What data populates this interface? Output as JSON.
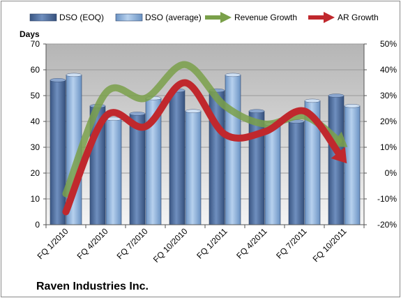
{
  "chart_data": {
    "type": "bar",
    "title": "Raven Industries Inc.",
    "ylabel_left": "Days",
    "categories": [
      "FQ 1/2010",
      "FQ 4/2010",
      "FQ 7/2010",
      "FQ 10/2010",
      "FQ 1/2011",
      "FQ 4/2011",
      "FQ 7/2011",
      "FQ 10/2011"
    ],
    "ylim_left": [
      0,
      70
    ],
    "yticks_left": [
      0,
      10,
      20,
      30,
      40,
      50,
      60,
      70
    ],
    "ylim_right": [
      -20,
      50
    ],
    "yticks_right": [
      -20,
      -10,
      0,
      10,
      20,
      30,
      40,
      50
    ],
    "ytick_labels_right": [
      "-20%",
      "-10%",
      "0%",
      "10%",
      "20%",
      "30%",
      "40%",
      "50%"
    ],
    "grid": true,
    "legend_position": "top",
    "series": [
      {
        "name": "DSO (EOQ)",
        "kind": "bar",
        "axis": "left",
        "values": [
          56,
          46,
          43,
          52,
          52,
          44,
          40,
          50
        ],
        "color": "#4a6b9c"
      },
      {
        "name": "DSO (average)",
        "kind": "bar",
        "axis": "left",
        "values": [
          58,
          41,
          49,
          44,
          58,
          39,
          48,
          46
        ],
        "color": "#8fb4de"
      },
      {
        "name": "Revenue Growth",
        "kind": "line",
        "axis": "right",
        "values": [
          -8,
          31,
          29,
          42,
          26,
          19,
          22,
          11
        ],
        "color": "#7aa04a"
      },
      {
        "name": "AR Growth",
        "kind": "line",
        "axis": "right",
        "values": [
          -15,
          22,
          18,
          35,
          15,
          16,
          24,
          5
        ],
        "color": "#c0282d"
      }
    ]
  }
}
